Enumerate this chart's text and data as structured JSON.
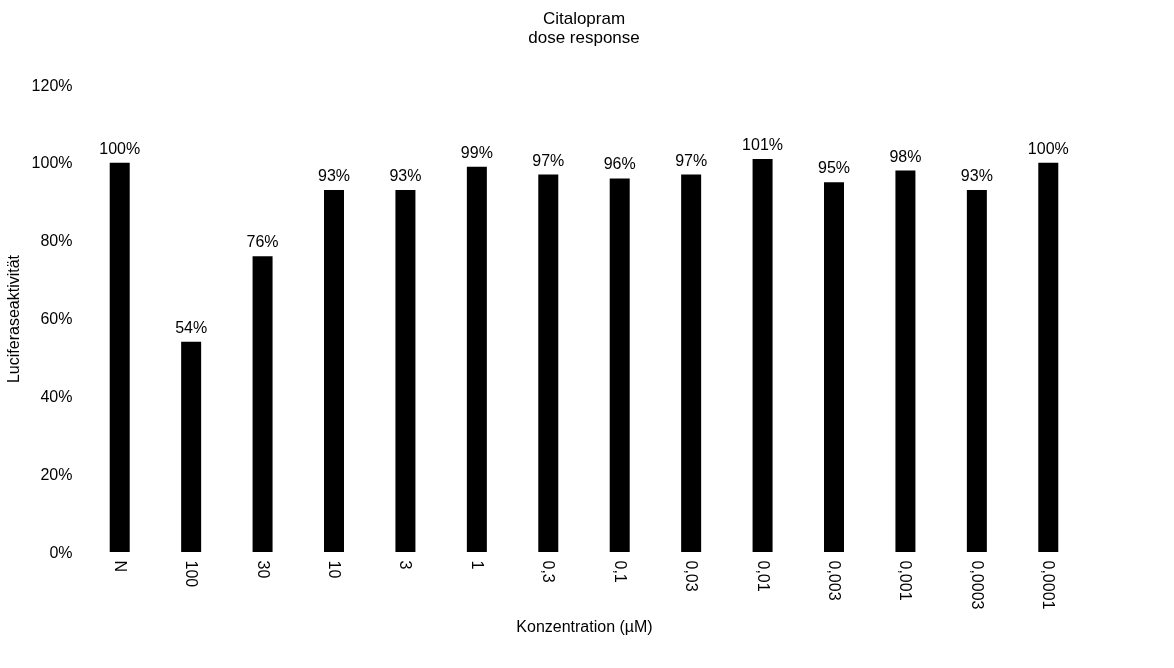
{
  "chart_data": {
    "type": "bar",
    "title": "Citalopram\ndose response",
    "xlabel": "Konzentration (µM)",
    "ylabel": "Luciferaseaktivität",
    "categories": [
      "N",
      "100",
      "30",
      "10",
      "3",
      "1",
      "0,3",
      "0,1",
      "0,03",
      "0,01",
      "0,003",
      "0,001",
      "0,0003",
      "0,0001"
    ],
    "values": [
      100,
      54,
      76,
      93,
      93,
      99,
      97,
      96,
      97,
      101,
      95,
      98,
      93,
      100
    ],
    "value_labels": [
      "100%",
      "54%",
      "76%",
      "93%",
      "93%",
      "99%",
      "97%",
      "96%",
      "97%",
      "101%",
      "95%",
      "98%",
      "93%",
      "100%"
    ],
    "color": "#000000",
    "ylim": [
      0,
      120
    ],
    "yticks": [
      {
        "value": 0,
        "label": "0%"
      },
      {
        "value": 20,
        "label": "20%"
      },
      {
        "value": 40,
        "label": "40%"
      },
      {
        "value": 60,
        "label": "60%"
      },
      {
        "value": 80,
        "label": "80%"
      },
      {
        "value": 100,
        "label": "100%"
      },
      {
        "value": 120,
        "label": "120%"
      }
    ],
    "grid": false
  }
}
